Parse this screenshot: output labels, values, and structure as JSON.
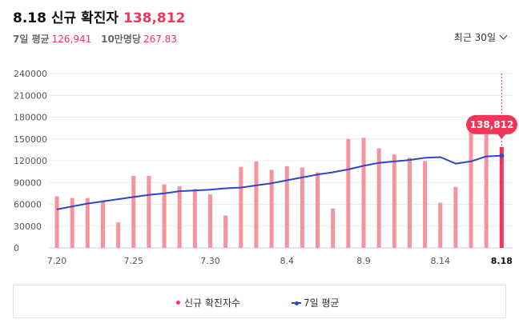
{
  "header": {
    "title": "8.18 신규 확진자",
    "value": "138,812"
  },
  "summary": {
    "avg7_label": "7일 평균",
    "avg7_value": "126,941",
    "per100k_label": "10만명당",
    "per100k_value": "267.83"
  },
  "range_selector": {
    "label": "최근 30일"
  },
  "tooltip": {
    "text": "138,812"
  },
  "legend": {
    "cases": "신규 확진자수",
    "avg7": "7일 평균"
  },
  "colors": {
    "bar": "#f7929f",
    "bar_highlight": "#f2365b",
    "line": "#2f45c8",
    "accent": "#f2365b"
  },
  "chart_data": {
    "type": "bar",
    "categories": [
      "7.20",
      "7.21",
      "7.22",
      "7.23",
      "7.24",
      "7.25",
      "7.26",
      "7.27",
      "7.28",
      "7.29",
      "7.30",
      "7.31",
      "8.1",
      "8.2",
      "8.3",
      "8.4",
      "8.5",
      "8.6",
      "8.7",
      "8.8",
      "8.9",
      "8.10",
      "8.11",
      "8.12",
      "8.13",
      "8.14",
      "8.15",
      "8.16",
      "8.17",
      "8.18"
    ],
    "x_tick_labels": [
      "7.20",
      "7.25",
      "7.30",
      "8.4",
      "8.9",
      "8.14",
      "8.18"
    ],
    "ylim": [
      0,
      240000
    ],
    "y_ticks": [
      0,
      30000,
      60000,
      90000,
      120000,
      150000,
      180000,
      210000,
      240000
    ],
    "series": [
      {
        "name": "신규 확진자수",
        "type": "bar",
        "values": [
          71000,
          68500,
          68500,
          65500,
          35000,
          99000,
          99000,
          87500,
          85000,
          81000,
          73500,
          44500,
          111500,
          119000,
          107500,
          112500,
          110500,
          104000,
          54000,
          150000,
          151500,
          137000,
          128500,
          124000,
          119500,
          62000,
          84000,
          180500,
          178000,
          138812
        ]
      },
      {
        "name": "7일 평균",
        "type": "line",
        "values": [
          53000,
          57000,
          61000,
          64000,
          67000,
          70000,
          73000,
          75000,
          78000,
          79000,
          80000,
          82000,
          83000,
          86000,
          89000,
          93000,
          97000,
          101000,
          104000,
          108000,
          113000,
          117000,
          119000,
          121000,
          124000,
          125000,
          116000,
          119000,
          126000,
          126941
        ]
      }
    ],
    "highlight_index": 29
  }
}
